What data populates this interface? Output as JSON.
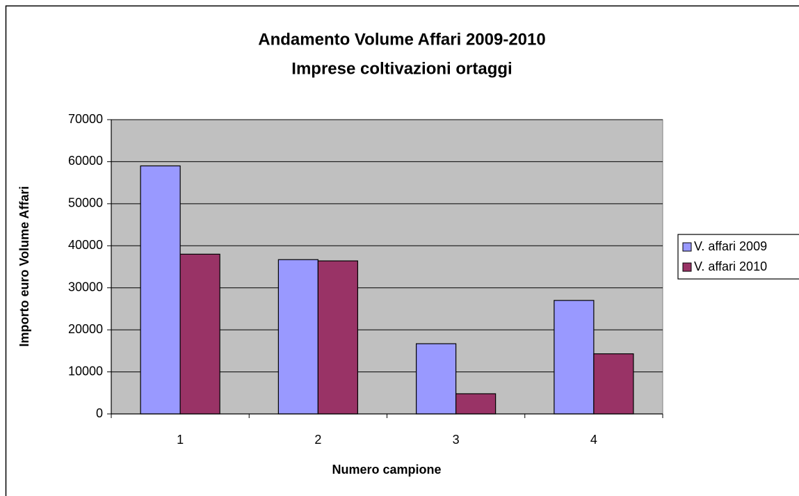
{
  "chart_data": {
    "type": "bar",
    "title": "Andamento Volume Affari 2009-2010",
    "subtitle": "Imprese coltivazioni ortaggi",
    "x_label": "Numero campione",
    "y_label": "Importo euro Volume Affari",
    "categories": [
      "1",
      "2",
      "3",
      "4"
    ],
    "series": [
      {
        "name": "V. affari 2009",
        "color": "#9999ff",
        "values": [
          59000,
          36700,
          16700,
          27000
        ]
      },
      {
        "name": "V. affari 2010",
        "color": "#993366",
        "values": [
          38000,
          36400,
          4800,
          14300
        ]
      }
    ],
    "ylim": [
      0,
      70000
    ],
    "yticks": [
      0,
      10000,
      20000,
      30000,
      40000,
      50000,
      60000,
      70000
    ],
    "grid": true,
    "plot_background": "#c0c0c0",
    "legend": "right"
  }
}
